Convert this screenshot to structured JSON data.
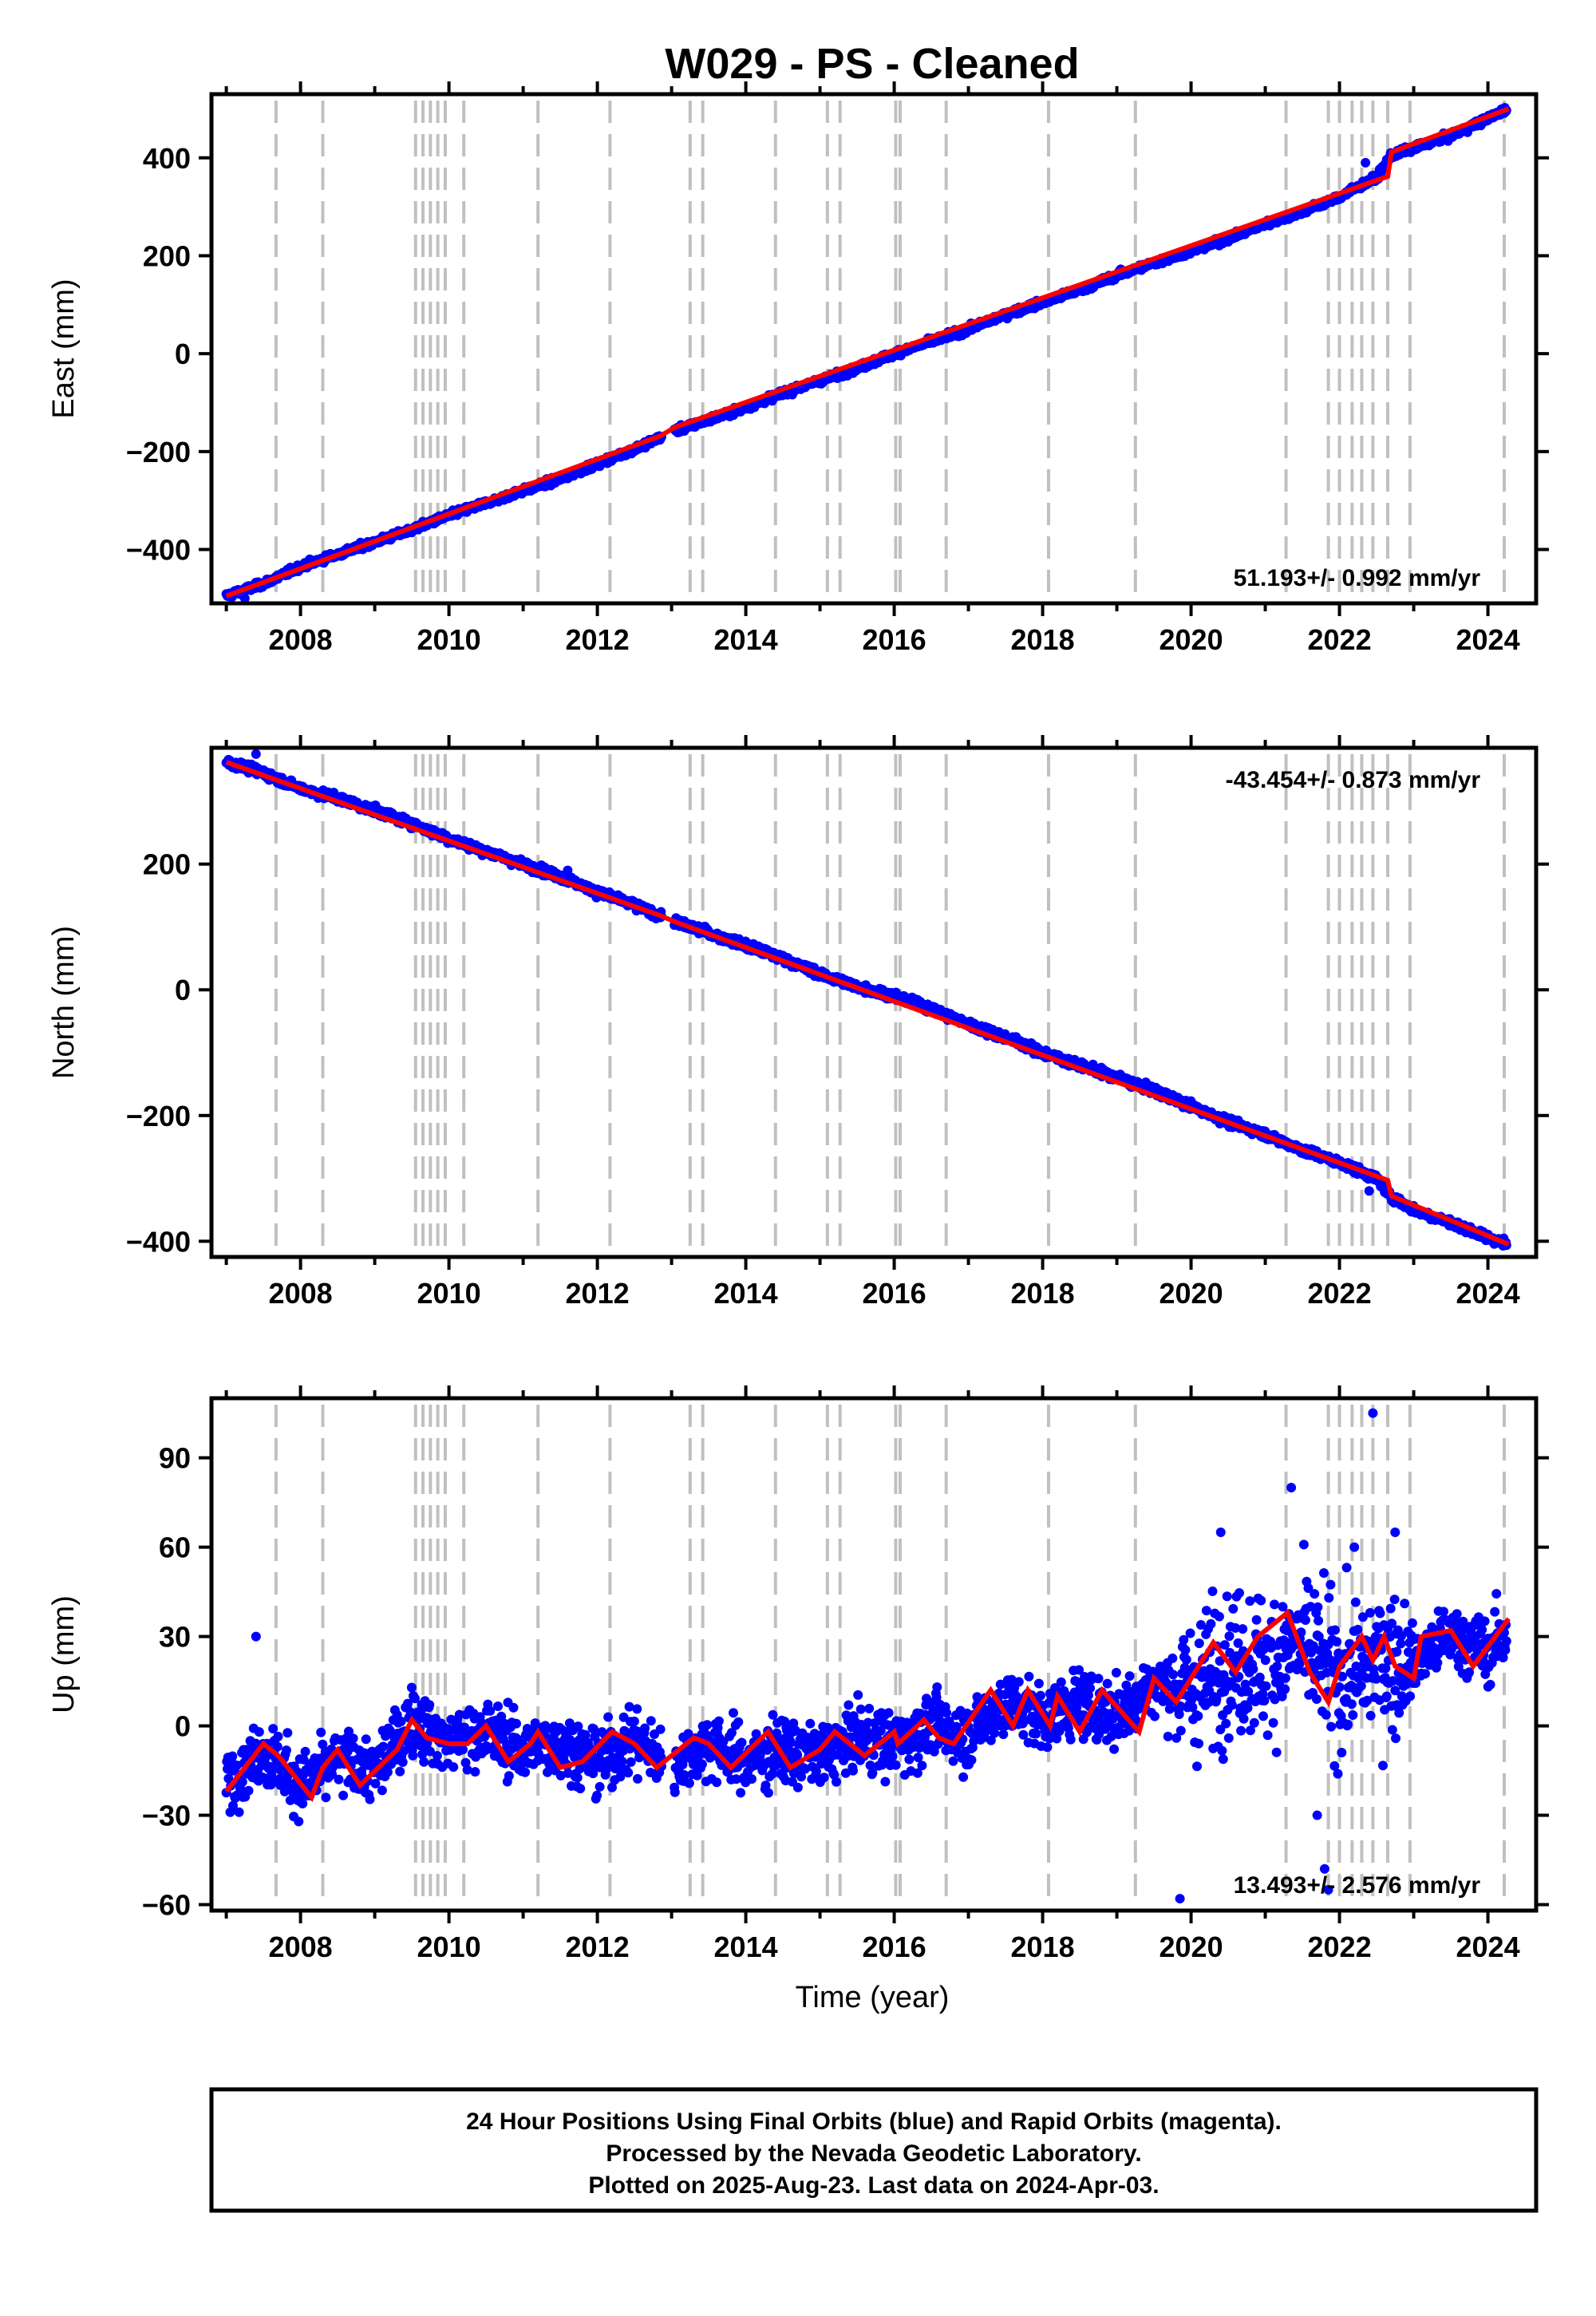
{
  "title": "W029  - PS - Cleaned",
  "xlabel": "Time (year)",
  "footer": {
    "line1": "24 Hour Positions Using Final Orbits (blue) and Rapid Orbits (magenta).",
    "line2": "Processed by the Nevada Geodetic Laboratory.",
    "line3": "Plotted on 2025-Aug-23. Last data on 2024-Apr-03."
  },
  "colors": {
    "data_points": "#0000ff",
    "model_line": "#ff0000",
    "event_lines": "#c0c0c0",
    "frame": "#000000"
  },
  "chart_data": [
    {
      "type": "scatter",
      "name": "east",
      "ylabel": "East (mm)",
      "rate_text": "51.193+/- 0.992 mm/yr",
      "xlim": [
        2006.8,
        2024.65
      ],
      "ylim": [
        -510,
        530
      ],
      "xticks": [
        2008,
        2010,
        2012,
        2014,
        2016,
        2018,
        2020,
        2022,
        2024
      ],
      "yticks": [
        -400,
        -200,
        0,
        200,
        400
      ],
      "grid": false,
      "series": [
        {
          "name": "daily positions",
          "x": [
            2007.0,
            2007.5,
            2008.0,
            2008.5,
            2009.0,
            2009.5,
            2010.0,
            2010.5,
            2011.0,
            2011.5,
            2012.0,
            2012.5,
            2013.0,
            2013.5,
            2014.0,
            2014.5,
            2015.0,
            2015.5,
            2016.0,
            2016.5,
            2017.0,
            2017.5,
            2018.0,
            2018.5,
            2019.0,
            2019.5,
            2020.0,
            2020.5,
            2021.0,
            2021.5,
            2022.0,
            2022.5,
            2022.7,
            2023.0,
            2023.5,
            2024.0,
            2024.25
          ],
          "y": [
            -495,
            -470,
            -435,
            -410,
            -385,
            -360,
            -330,
            -305,
            -280,
            -255,
            -225,
            -195,
            -160,
            -135,
            -110,
            -80,
            -55,
            -30,
            0,
            25,
            50,
            80,
            105,
            130,
            160,
            185,
            210,
            235,
            265,
            290,
            320,
            360,
            405,
            420,
            445,
            480,
            500
          ]
        }
      ],
      "outliers": {
        "x": [
          2007.25,
          2011.6,
          2022.35
        ],
        "y": [
          -500,
          -255,
          390
        ]
      },
      "model": {
        "x": [
          2007.0,
          2012.85,
          2013.05,
          2022.65,
          2022.7,
          2024.28
        ],
        "y": [
          -495,
          -168,
          -150,
          362,
          412,
          500
        ]
      }
    },
    {
      "type": "scatter",
      "name": "north",
      "ylabel": "North (mm)",
      "rate_text": "-43.454+/- 0.873 mm/yr",
      "xlim": [
        2006.8,
        2024.65
      ],
      "ylim": [
        -425,
        385
      ],
      "xticks": [
        2008,
        2010,
        2012,
        2014,
        2016,
        2018,
        2020,
        2022,
        2024
      ],
      "yticks": [
        -400,
        -200,
        0,
        200
      ],
      "grid": false,
      "series": [
        {
          "name": "daily positions",
          "x": [
            2007.0,
            2007.5,
            2008.0,
            2008.5,
            2009.0,
            2009.5,
            2010.0,
            2010.5,
            2011.0,
            2011.5,
            2012.0,
            2012.5,
            2013.0,
            2013.5,
            2014.0,
            2014.5,
            2015.0,
            2015.5,
            2016.0,
            2016.5,
            2017.0,
            2017.5,
            2018.0,
            2018.5,
            2019.0,
            2019.5,
            2020.0,
            2020.5,
            2021.0,
            2021.5,
            2022.0,
            2022.5,
            2022.7,
            2023.0,
            2023.5,
            2024.0,
            2024.25
          ],
          "y": [
            362,
            345,
            320,
            305,
            285,
            265,
            240,
            220,
            200,
            180,
            155,
            135,
            110,
            90,
            70,
            50,
            25,
            5,
            -10,
            -30,
            -55,
            -75,
            -100,
            -120,
            -140,
            -160,
            -185,
            -210,
            -230,
            -255,
            -275,
            -300,
            -330,
            -350,
            -370,
            -395,
            -405
          ]
        }
      ],
      "outliers": {
        "x": [
          2007.4,
          2011.6,
          2022.4
        ],
        "y": [
          375,
          190,
          -320
        ]
      },
      "model": {
        "x": [
          2007.0,
          2012.85,
          2013.05,
          2022.65,
          2022.7,
          2024.28
        ],
        "y": [
          362,
          118,
          108,
          -303,
          -328,
          -405
        ]
      }
    },
    {
      "type": "scatter",
      "name": "up",
      "ylabel": "Up (mm)",
      "rate_text": "13.493+/- 2.576 mm/yr",
      "xlim": [
        2006.8,
        2024.65
      ],
      "ylim": [
        -62,
        110
      ],
      "xticks": [
        2008,
        2010,
        2012,
        2014,
        2016,
        2018,
        2020,
        2022,
        2024
      ],
      "yticks": [
        -60,
        -30,
        0,
        30,
        60,
        90
      ],
      "grid": false,
      "series": [
        {
          "name": "daily positions",
          "x": [
            2007.0,
            2007.5,
            2008.0,
            2008.5,
            2009.0,
            2009.5,
            2010.0,
            2010.5,
            2011.0,
            2011.5,
            2012.0,
            2012.5,
            2013.0,
            2013.5,
            2014.0,
            2014.5,
            2015.0,
            2015.5,
            2016.0,
            2016.5,
            2017.0,
            2017.5,
            2018.0,
            2018.5,
            2019.0,
            2019.5,
            2020.0,
            2020.5,
            2021.0,
            2021.5,
            2022.0,
            2022.5,
            2023.0,
            2023.5,
            2024.0,
            2024.25
          ],
          "y": [
            -18,
            -8,
            -20,
            -12,
            -15,
            2,
            -5,
            -2,
            -8,
            -6,
            -12,
            -4,
            -14,
            -6,
            -12,
            -8,
            -10,
            -4,
            -6,
            0,
            -3,
            8,
            3,
            8,
            4,
            14,
            12,
            22,
            20,
            28,
            15,
            22,
            22,
            30,
            25,
            32
          ]
        }
      ],
      "outliers": {
        "x": [
          2007.4,
          2019.85,
          2020.4,
          2021.35,
          2021.7,
          2021.8,
          2021.85,
          2022.2,
          2022.45,
          2022.75
        ],
        "y": [
          30,
          -58,
          65,
          80,
          -30,
          -48,
          -55,
          60,
          105,
          65
        ]
      },
      "model": {
        "x": [
          2007.0,
          2007.5,
          2007.7,
          2008.15,
          2008.3,
          2008.5,
          2008.8,
          2009.3,
          2009.5,
          2009.7,
          2010.0,
          2010.25,
          2010.5,
          2010.8,
          2011.1,
          2011.2,
          2011.5,
          2011.8,
          2012.2,
          2012.5,
          2012.8,
          2013.3,
          2013.5,
          2013.8,
          2014.3,
          2014.6,
          2015.0,
          2015.2,
          2015.3,
          2015.6,
          2016.0,
          2016.05,
          2016.4,
          2016.6,
          2016.8,
          2017.3,
          2017.6,
          2017.8,
          2018.1,
          2018.2,
          2018.5,
          2018.8,
          2019.3,
          2019.5,
          2019.8,
          2020.3,
          2020.6,
          2020.9,
          2021.3,
          2021.6,
          2021.85,
          2022.0,
          2022.3,
          2022.45,
          2022.6,
          2022.75,
          2023.0,
          2023.1,
          2023.5,
          2023.8,
          2024.28
        ],
        "y": [
          -22,
          -6,
          -10,
          -24,
          -14,
          -8,
          -20,
          -8,
          2,
          -4,
          -6,
          -6,
          0,
          -12,
          -6,
          -2,
          -14,
          -12,
          -2,
          -6,
          -14,
          -4,
          -6,
          -14,
          -2,
          -14,
          -8,
          -2,
          -4,
          -10,
          -2,
          -6,
          2,
          -4,
          -6,
          12,
          0,
          12,
          0,
          10,
          -2,
          12,
          -2,
          16,
          8,
          28,
          18,
          30,
          38,
          18,
          8,
          20,
          30,
          22,
          30,
          20,
          16,
          30,
          32,
          20,
          36
        ]
      }
    }
  ],
  "event_years": [
    2007.67,
    2008.3,
    2009.55,
    2009.65,
    2009.75,
    2009.85,
    2009.95,
    2010.2,
    2011.2,
    2012.17,
    2013.25,
    2013.42,
    2014.4,
    2015.1,
    2015.27,
    2016.02,
    2016.08,
    2016.7,
    2018.08,
    2019.25,
    2021.28,
    2021.85,
    2022.0,
    2022.17,
    2022.3,
    2022.45,
    2022.65,
    2022.95,
    2024.22
  ]
}
